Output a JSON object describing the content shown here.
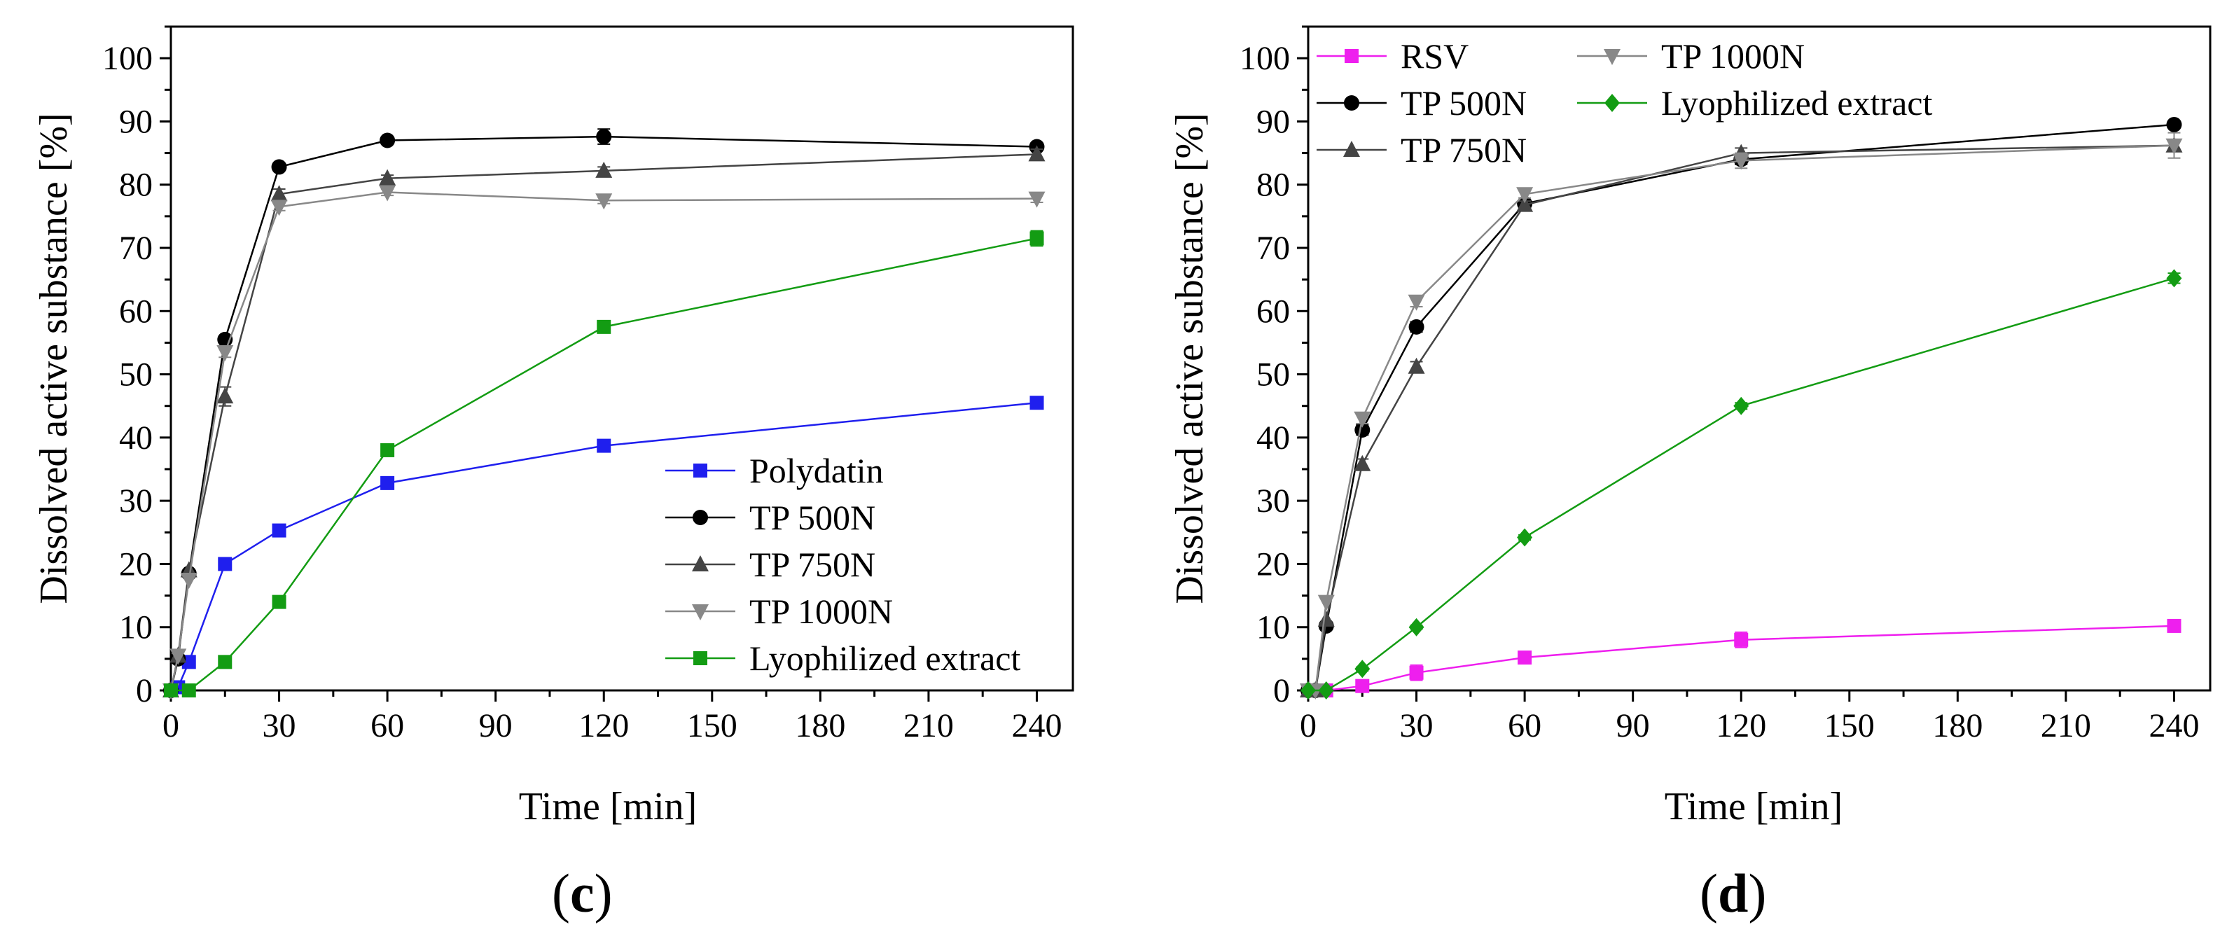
{
  "chart_data": [
    {
      "type": "line",
      "panel": "c",
      "panel_label": {
        "open": "(",
        "letter": "c",
        "close": ")"
      },
      "xlabel": "Time [min]",
      "ylabel": "Dissolved active substance [%]",
      "xlim": [
        0,
        250
      ],
      "ylim": [
        0,
        105
      ],
      "xticks": [
        0,
        30,
        60,
        90,
        120,
        150,
        180,
        210,
        240
      ],
      "yticks": [
        0,
        10,
        20,
        30,
        40,
        50,
        60,
        70,
        80,
        90,
        100
      ],
      "legend_position": "bottom-right",
      "series": [
        {
          "name": "Polydatin",
          "color": "#1f1fee",
          "marker": "square",
          "x": [
            0,
            2,
            5,
            15,
            30,
            60,
            120,
            240
          ],
          "y": [
            0,
            0.5,
            4.5,
            20,
            25.3,
            32.8,
            38.7,
            45.5
          ],
          "err": [
            0,
            0,
            0,
            0,
            0.5,
            0.5,
            0.8,
            0.6
          ]
        },
        {
          "name": "TP 500N",
          "color": "#000000",
          "marker": "circle",
          "x": [
            0,
            2,
            5,
            15,
            30,
            60,
            120,
            240
          ],
          "y": [
            0,
            5,
            18.5,
            55.5,
            82.8,
            87,
            87.6,
            86
          ],
          "err": [
            0,
            0,
            0,
            0,
            0.4,
            0.4,
            1.2,
            0.6
          ]
        },
        {
          "name": "TP 750N",
          "color": "#444444",
          "marker": "triangle-up",
          "x": [
            0,
            2,
            5,
            15,
            30,
            60,
            120,
            240
          ],
          "y": [
            0,
            5.5,
            19,
            46.5,
            78.5,
            81,
            82.2,
            84.8
          ],
          "err": [
            0,
            0,
            0,
            1.5,
            0.8,
            0.5,
            0.6,
            0.8
          ]
        },
        {
          "name": "TP 1000N",
          "color": "#888888",
          "marker": "triangle-down",
          "x": [
            0,
            2,
            5,
            15,
            30,
            60,
            120,
            240
          ],
          "y": [
            0,
            5.5,
            17.5,
            53.5,
            76.5,
            78.8,
            77.5,
            77.8
          ],
          "err": [
            0,
            0,
            0,
            0.8,
            0.6,
            0.5,
            0.5,
            0.6
          ]
        },
        {
          "name": "Lyophilized extract",
          "color": "#139c13",
          "marker": "square",
          "x": [
            0,
            5,
            15,
            30,
            60,
            120,
            240
          ],
          "y": [
            0,
            0,
            4.5,
            14,
            38,
            57.5,
            71.5
          ],
          "err": [
            0,
            0,
            0,
            0,
            0,
            0.8,
            1.2
          ]
        }
      ]
    },
    {
      "type": "line",
      "panel": "d",
      "panel_label": {
        "open": "(",
        "letter": "d",
        "close": ")"
      },
      "xlabel": "Time [min]",
      "ylabel": "Dissolved active substance [%]",
      "xlim": [
        0,
        250
      ],
      "ylim": [
        0,
        105
      ],
      "xticks": [
        0,
        30,
        60,
        90,
        120,
        150,
        180,
        210,
        240
      ],
      "yticks": [
        0,
        10,
        20,
        30,
        40,
        50,
        60,
        70,
        80,
        90,
        100
      ],
      "legend_position": "top-left",
      "series": [
        {
          "name": "RSV",
          "color": "#ee1fee",
          "marker": "square",
          "x": [
            0,
            5,
            15,
            30,
            60,
            120,
            240
          ],
          "y": [
            0,
            0,
            0.7,
            2.8,
            5.2,
            8,
            10.2
          ],
          "err": [
            0,
            0,
            0.3,
            1.2,
            0.8,
            1.2,
            0.5
          ]
        },
        {
          "name": "TP 500N",
          "color": "#000000",
          "marker": "circle",
          "x": [
            0,
            2,
            5,
            15,
            30,
            60,
            120,
            240
          ],
          "y": [
            0,
            0,
            10.2,
            41.2,
            57.5,
            77,
            84,
            89.5
          ],
          "err": [
            0,
            0,
            0,
            0.8,
            0.8,
            0.6,
            0.8,
            0.4
          ]
        },
        {
          "name": "TP 750N",
          "color": "#444444",
          "marker": "triangle-up",
          "x": [
            0,
            2,
            5,
            15,
            30,
            60,
            120,
            240
          ],
          "y": [
            0,
            0,
            11.2,
            35.8,
            51.2,
            76.8,
            85,
            86.2
          ],
          "err": [
            0,
            0,
            0,
            0.8,
            0.8,
            0.6,
            0.8,
            0.8
          ]
        },
        {
          "name": "TP 1000N",
          "color": "#888888",
          "marker": "triangle-down",
          "x": [
            0,
            2,
            5,
            15,
            30,
            60,
            120,
            240
          ],
          "y": [
            0,
            0,
            14,
            43,
            61.5,
            78.5,
            83.8,
            86.2
          ],
          "err": [
            0,
            0,
            0,
            0.8,
            0.8,
            0.6,
            1.2,
            2
          ]
        },
        {
          "name": "Lyophilized extract",
          "color": "#139c13",
          "marker": "diamond",
          "x": [
            0,
            5,
            15,
            30,
            60,
            120,
            240
          ],
          "y": [
            0,
            0,
            3.4,
            10,
            24.2,
            45,
            65.2
          ],
          "err": [
            0,
            0,
            0.3,
            0.3,
            0.4,
            0.5,
            0.8
          ]
        }
      ]
    }
  ]
}
